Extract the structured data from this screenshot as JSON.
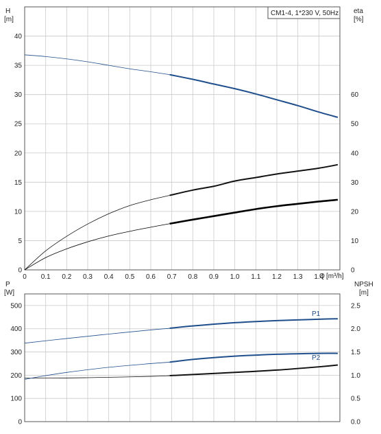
{
  "chart_data": [
    {
      "type": "line",
      "title": "CM1-4, 1*230 V, 50Hz",
      "xlabel": "Q [m³/h]",
      "xlabel_lines": [
        "Q",
        "[m³/h]"
      ],
      "ylabel_left": [
        "H",
        "[m]"
      ],
      "ylabel_right": [
        "eta",
        "[%]"
      ],
      "xlim": [
        0,
        1.5
      ],
      "ylim_left": [
        0,
        45
      ],
      "ylim_right": [
        0,
        90
      ],
      "x_ticks": [
        "0",
        "0.1",
        "0.2",
        "0.3",
        "0.4",
        "0.5",
        "0.6",
        "0.7",
        "0.8",
        "0.9",
        "1.0",
        "1.1",
        "1.2",
        "1.3",
        "1.4"
      ],
      "y_ticks_left": [
        "0",
        "5",
        "10",
        "15",
        "20",
        "25",
        "30",
        "35",
        "40"
      ],
      "y_ticks_right": [
        "0",
        "10",
        "20",
        "30",
        "40",
        "50",
        "60"
      ],
      "grid": true,
      "duty_start_x": 0.69,
      "series": [
        {
          "axis": "left",
          "color": "#1f4e8c",
          "x": [
            0,
            0.1,
            0.2,
            0.3,
            0.4,
            0.5,
            0.6,
            0.69,
            0.8,
            0.9,
            1.0,
            1.1,
            1.2,
            1.3,
            1.4,
            1.49
          ],
          "values": [
            36.8,
            36.5,
            36.1,
            35.6,
            35.0,
            34.4,
            33.9,
            33.4,
            32.6,
            31.8,
            31.0,
            30.1,
            29.1,
            28.1,
            27.0,
            26.1
          ]
        },
        {
          "axis": "right",
          "color": "#111111",
          "x": [
            0,
            0.1,
            0.2,
            0.3,
            0.4,
            0.5,
            0.6,
            0.69,
            0.8,
            0.9,
            1.0,
            1.1,
            1.2,
            1.3,
            1.4,
            1.49
          ],
          "values": [
            0,
            6.5,
            11.5,
            15.7,
            19.2,
            22.0,
            24.0,
            25.5,
            27.3,
            28.6,
            30.4,
            31.6,
            32.8,
            33.8,
            34.8,
            36.0
          ]
        },
        {
          "axis": "left",
          "color": "#000000",
          "x": [
            0,
            0.1,
            0.2,
            0.3,
            0.4,
            0.5,
            0.6,
            0.69,
            0.8,
            0.9,
            1.0,
            1.1,
            1.2,
            1.3,
            1.4,
            1.49
          ],
          "values": [
            0,
            2.1,
            3.6,
            4.8,
            5.8,
            6.6,
            7.3,
            7.9,
            8.6,
            9.2,
            9.8,
            10.4,
            10.9,
            11.3,
            11.7,
            12.0
          ]
        }
      ]
    },
    {
      "type": "line",
      "xlim": [
        0,
        1.5
      ],
      "ylabel_left": [
        "P",
        "[W]"
      ],
      "ylabel_right": [
        "NPSH",
        "[m]"
      ],
      "ylim_left": [
        0,
        550
      ],
      "ylim_right": [
        0,
        2.75
      ],
      "y_ticks_left": [
        "0",
        "100",
        "200",
        "300",
        "400",
        "500"
      ],
      "y_ticks_right": [
        "0.0",
        "0.5",
        "1.0",
        "1.5",
        "2.0",
        "2.5"
      ],
      "grid": true,
      "duty_start_x": 0.69,
      "labels": [
        "P1",
        "P2"
      ],
      "series": [
        {
          "name": "P1",
          "axis": "left",
          "color": "#1f4e8c",
          "x": [
            0,
            0.2,
            0.4,
            0.6,
            0.69,
            0.8,
            1.0,
            1.2,
            1.4,
            1.49
          ],
          "values": [
            338,
            358,
            377,
            395,
            402,
            412,
            426,
            435,
            441,
            443
          ]
        },
        {
          "name": "P2",
          "axis": "left",
          "color": "#111111",
          "x": [
            0,
            0.2,
            0.4,
            0.6,
            0.69,
            0.8,
            1.0,
            1.2,
            1.4,
            1.49
          ],
          "values": [
            187,
            188,
            191,
            195,
            198,
            203,
            212,
            222,
            236,
            244
          ]
        },
        {
          "axis": "right",
          "color": "#1f4e8c",
          "x": [
            0,
            0.1,
            0.2,
            0.4,
            0.6,
            0.69,
            0.8,
            1.0,
            1.2,
            1.4,
            1.49
          ],
          "values": [
            0.91,
            0.99,
            1.06,
            1.17,
            1.25,
            1.28,
            1.34,
            1.41,
            1.45,
            1.47,
            1.47
          ]
        }
      ]
    }
  ]
}
